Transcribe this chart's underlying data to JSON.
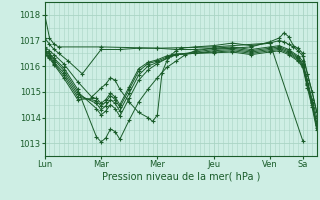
{
  "title": "Pression niveau de la mer( hPa )",
  "background_color": "#ceeee4",
  "grid_color": "#aad4c4",
  "line_color": "#1a5c2a",
  "ylim": [
    1012.5,
    1018.5
  ],
  "yticks": [
    1013,
    1014,
    1015,
    1016,
    1017,
    1018
  ],
  "day_labels": [
    "Lun",
    "Mar",
    "Mer",
    "Jeu",
    "Ven",
    "Sa"
  ],
  "day_positions": [
    0,
    60,
    120,
    180,
    240,
    275
  ],
  "xlim": [
    0,
    290
  ],
  "series": [
    [
      [
        0,
        1018.0
      ],
      [
        5,
        1017.1
      ],
      [
        10,
        1016.85
      ],
      [
        15,
        1016.75
      ],
      [
        60,
        1016.75
      ],
      [
        120,
        1016.7
      ],
      [
        180,
        1016.75
      ],
      [
        240,
        1016.9
      ],
      [
        275,
        1013.1
      ]
    ],
    [
      [
        0,
        1017.1
      ],
      [
        5,
        1016.85
      ],
      [
        10,
        1016.65
      ],
      [
        15,
        1016.5
      ],
      [
        25,
        1016.2
      ],
      [
        40,
        1015.7
      ],
      [
        60,
        1016.65
      ],
      [
        80,
        1016.65
      ],
      [
        100,
        1016.7
      ],
      [
        120,
        1016.7
      ],
      [
        140,
        1016.65
      ],
      [
        160,
        1016.65
      ],
      [
        180,
        1016.7
      ],
      [
        200,
        1016.7
      ],
      [
        220,
        1016.75
      ],
      [
        240,
        1016.95
      ],
      [
        250,
        1017.1
      ],
      [
        255,
        1017.3
      ],
      [
        260,
        1017.15
      ],
      [
        265,
        1016.8
      ],
      [
        270,
        1016.7
      ],
      [
        275,
        1016.5
      ],
      [
        280,
        1015.7
      ],
      [
        285,
        1015.0
      ],
      [
        290,
        1014.2
      ]
    ],
    [
      [
        0,
        1016.75
      ],
      [
        5,
        1016.6
      ],
      [
        10,
        1016.45
      ],
      [
        20,
        1016.1
      ],
      [
        35,
        1015.4
      ],
      [
        50,
        1014.8
      ],
      [
        60,
        1015.15
      ],
      [
        65,
        1015.3
      ],
      [
        70,
        1015.55
      ],
      [
        75,
        1015.45
      ],
      [
        80,
        1015.1
      ],
      [
        90,
        1014.6
      ],
      [
        100,
        1014.2
      ],
      [
        110,
        1014.0
      ],
      [
        115,
        1013.85
      ],
      [
        120,
        1014.1
      ],
      [
        125,
        1015.75
      ],
      [
        130,
        1016.2
      ],
      [
        135,
        1016.45
      ],
      [
        140,
        1016.6
      ],
      [
        145,
        1016.7
      ],
      [
        160,
        1016.75
      ],
      [
        180,
        1016.8
      ],
      [
        200,
        1016.9
      ],
      [
        220,
        1016.8
      ],
      [
        240,
        1016.9
      ],
      [
        250,
        1017.0
      ],
      [
        255,
        1016.95
      ],
      [
        260,
        1016.85
      ],
      [
        265,
        1016.75
      ],
      [
        270,
        1016.6
      ],
      [
        275,
        1016.4
      ],
      [
        280,
        1015.7
      ],
      [
        285,
        1015.0
      ],
      [
        290,
        1014.2
      ]
    ],
    [
      [
        0,
        1016.65
      ],
      [
        5,
        1016.5
      ],
      [
        10,
        1016.3
      ],
      [
        20,
        1015.95
      ],
      [
        35,
        1015.1
      ],
      [
        55,
        1013.25
      ],
      [
        60,
        1013.05
      ],
      [
        65,
        1013.2
      ],
      [
        70,
        1013.55
      ],
      [
        75,
        1013.45
      ],
      [
        80,
        1013.15
      ],
      [
        90,
        1013.9
      ],
      [
        100,
        1014.6
      ],
      [
        110,
        1015.1
      ],
      [
        120,
        1015.55
      ],
      [
        130,
        1015.95
      ],
      [
        140,
        1016.2
      ],
      [
        150,
        1016.45
      ],
      [
        160,
        1016.6
      ],
      [
        180,
        1016.7
      ],
      [
        200,
        1016.75
      ],
      [
        220,
        1016.65
      ],
      [
        240,
        1016.75
      ],
      [
        250,
        1016.8
      ],
      [
        260,
        1016.65
      ],
      [
        270,
        1016.4
      ],
      [
        275,
        1016.2
      ],
      [
        280,
        1015.45
      ],
      [
        285,
        1014.7
      ],
      [
        290,
        1014.0
      ]
    ],
    [
      [
        0,
        1016.6
      ],
      [
        5,
        1016.45
      ],
      [
        10,
        1016.25
      ],
      [
        20,
        1015.85
      ],
      [
        35,
        1015.0
      ],
      [
        55,
        1014.35
      ],
      [
        60,
        1014.1
      ],
      [
        65,
        1014.25
      ],
      [
        70,
        1014.5
      ],
      [
        75,
        1014.35
      ],
      [
        80,
        1014.05
      ],
      [
        90,
        1014.75
      ],
      [
        100,
        1015.45
      ],
      [
        110,
        1015.85
      ],
      [
        120,
        1016.1
      ],
      [
        130,
        1016.3
      ],
      [
        140,
        1016.45
      ],
      [
        160,
        1016.55
      ],
      [
        180,
        1016.65
      ],
      [
        200,
        1016.7
      ],
      [
        220,
        1016.6
      ],
      [
        240,
        1016.7
      ],
      [
        250,
        1016.75
      ],
      [
        260,
        1016.6
      ],
      [
        270,
        1016.35
      ],
      [
        275,
        1016.1
      ],
      [
        280,
        1015.35
      ],
      [
        285,
        1014.6
      ],
      [
        290,
        1013.8
      ]
    ],
    [
      [
        0,
        1016.55
      ],
      [
        5,
        1016.4
      ],
      [
        10,
        1016.15
      ],
      [
        20,
        1015.75
      ],
      [
        35,
        1014.9
      ],
      [
        55,
        1014.55
      ],
      [
        60,
        1014.3
      ],
      [
        65,
        1014.45
      ],
      [
        70,
        1014.7
      ],
      [
        75,
        1014.55
      ],
      [
        80,
        1014.25
      ],
      [
        90,
        1014.95
      ],
      [
        100,
        1015.65
      ],
      [
        110,
        1016.0
      ],
      [
        120,
        1016.15
      ],
      [
        130,
        1016.3
      ],
      [
        140,
        1016.45
      ],
      [
        160,
        1016.5
      ],
      [
        180,
        1016.6
      ],
      [
        200,
        1016.65
      ],
      [
        220,
        1016.55
      ],
      [
        240,
        1016.65
      ],
      [
        250,
        1016.7
      ],
      [
        260,
        1016.55
      ],
      [
        270,
        1016.3
      ],
      [
        275,
        1016.05
      ],
      [
        280,
        1015.3
      ],
      [
        285,
        1014.55
      ],
      [
        290,
        1013.7
      ]
    ],
    [
      [
        0,
        1016.5
      ],
      [
        5,
        1016.35
      ],
      [
        10,
        1016.1
      ],
      [
        20,
        1015.65
      ],
      [
        35,
        1014.8
      ],
      [
        55,
        1014.65
      ],
      [
        60,
        1014.45
      ],
      [
        65,
        1014.6
      ],
      [
        70,
        1014.85
      ],
      [
        75,
        1014.7
      ],
      [
        80,
        1014.4
      ],
      [
        90,
        1015.1
      ],
      [
        100,
        1015.8
      ],
      [
        110,
        1016.1
      ],
      [
        120,
        1016.2
      ],
      [
        130,
        1016.35
      ],
      [
        140,
        1016.45
      ],
      [
        160,
        1016.5
      ],
      [
        180,
        1016.55
      ],
      [
        200,
        1016.6
      ],
      [
        220,
        1016.5
      ],
      [
        240,
        1016.6
      ],
      [
        250,
        1016.65
      ],
      [
        260,
        1016.5
      ],
      [
        270,
        1016.25
      ],
      [
        275,
        1016.0
      ],
      [
        280,
        1015.25
      ],
      [
        285,
        1014.5
      ],
      [
        290,
        1013.6
      ]
    ],
    [
      [
        0,
        1016.45
      ],
      [
        5,
        1016.3
      ],
      [
        10,
        1016.05
      ],
      [
        20,
        1015.55
      ],
      [
        35,
        1014.7
      ],
      [
        55,
        1014.75
      ],
      [
        60,
        1014.55
      ],
      [
        65,
        1014.7
      ],
      [
        70,
        1014.95
      ],
      [
        75,
        1014.8
      ],
      [
        80,
        1014.5
      ],
      [
        90,
        1015.2
      ],
      [
        100,
        1015.9
      ],
      [
        110,
        1016.15
      ],
      [
        120,
        1016.25
      ],
      [
        130,
        1016.4
      ],
      [
        140,
        1016.48
      ],
      [
        160,
        1016.5
      ],
      [
        180,
        1016.52
      ],
      [
        200,
        1016.55
      ],
      [
        220,
        1016.45
      ],
      [
        240,
        1016.55
      ],
      [
        250,
        1016.6
      ],
      [
        260,
        1016.45
      ],
      [
        270,
        1016.2
      ],
      [
        275,
        1015.95
      ],
      [
        280,
        1015.15
      ],
      [
        285,
        1014.4
      ],
      [
        290,
        1013.5
      ]
    ]
  ]
}
